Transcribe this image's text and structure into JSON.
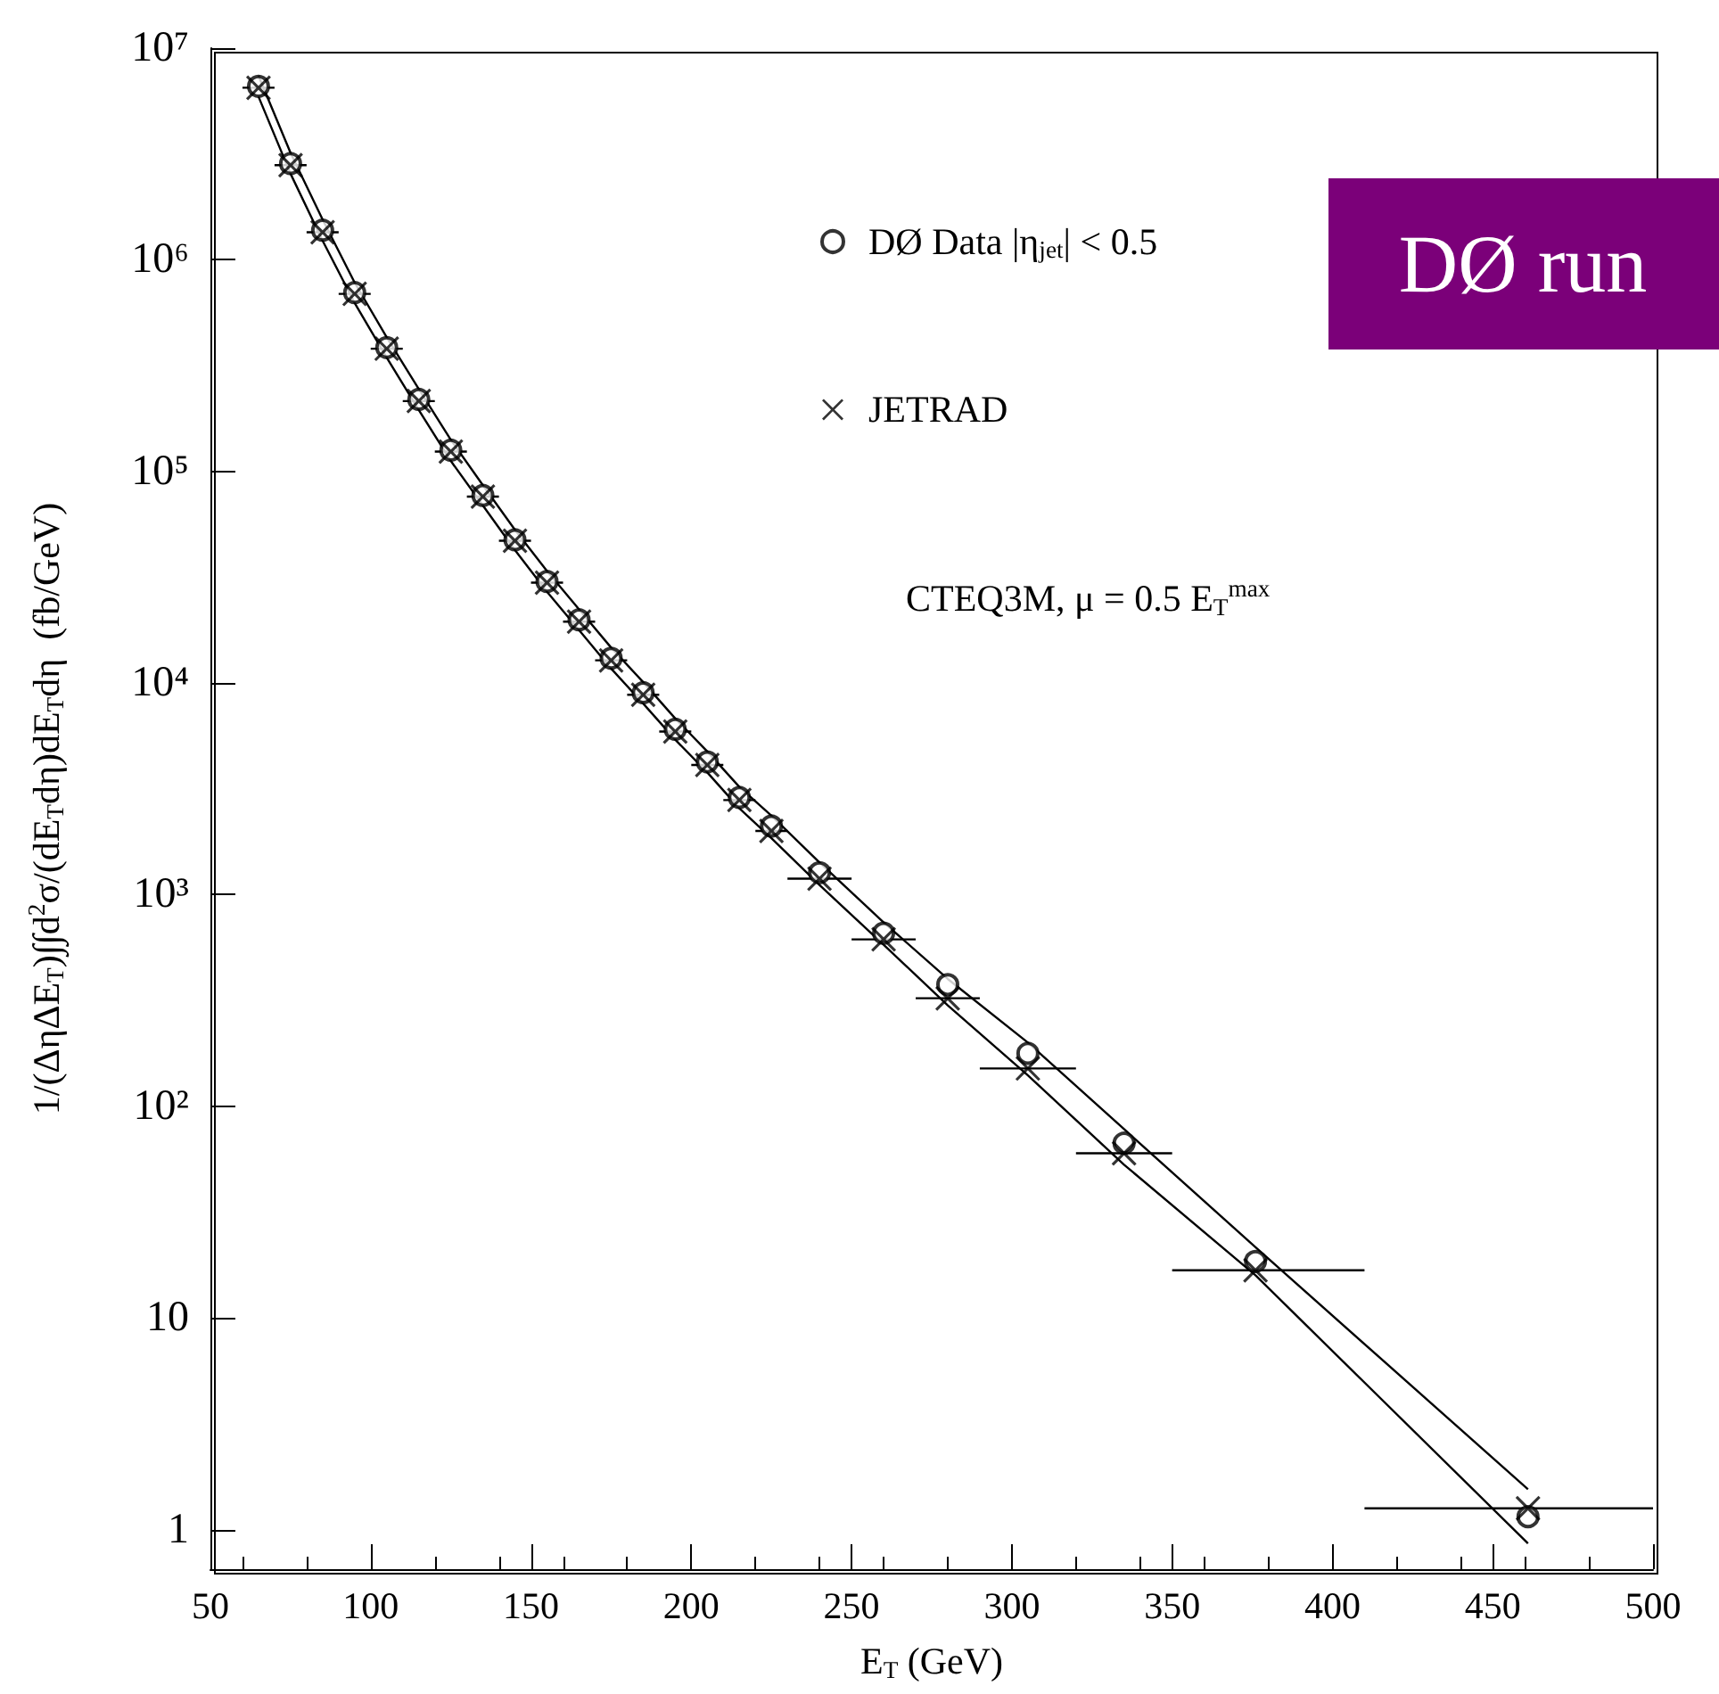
{
  "chart_data": {
    "type": "scatter",
    "xlabel": "E$_{T}$ (GeV)",
    "ylabel": "1/(ΔηΔE$_{T}$)∫∫d$^{2}$σ/(dE$_{T}$dη)dE$_{T}$dη  (fb/GeV)",
    "x": [
      65,
      75,
      85,
      95,
      105,
      115,
      125,
      135,
      145,
      155,
      165,
      175,
      185,
      195,
      205,
      215,
      225,
      240,
      260,
      280,
      305,
      335,
      376,
      461
    ],
    "series": [
      {
        "name": "DØ Data |η$_{jet}$| < 0.5",
        "color": "#000000",
        "marker": "circle",
        "values": [
          6600000,
          2850000,
          1380000,
          700000,
          385000,
          219000,
          126000,
          77000,
          47500,
          30200,
          19900,
          13100,
          9000,
          6050,
          4240,
          2880,
          2110,
          1270,
          658,
          376,
          178,
          67,
          18.5,
          1.15
        ]
      },
      {
        "name": "JETRAD",
        "color": "#000000",
        "marker": "cross",
        "values": [
          6500000,
          2800000,
          1350000,
          690000,
          380000,
          215000,
          124000,
          76000,
          47000,
          29800,
          19500,
          12800,
          8800,
          5900,
          4100,
          2800,
          2000,
          1190,
          615,
          324,
          151,
          60,
          16.8,
          1.26
        ],
        "xerrors": [
          5,
          5,
          5,
          5,
          5,
          5,
          5,
          5,
          5,
          5,
          5,
          5,
          5,
          5,
          5,
          5,
          5,
          [
            230,
            250
          ],
          [
            250,
            270
          ],
          [
            270,
            290
          ],
          [
            290,
            320
          ],
          [
            320,
            350
          ],
          [
            350,
            410
          ],
          [
            410,
            500
          ]
        ]
      },
      {
        "type": "line",
        "color": "#000000",
        "marker": "none",
        "values": [
          7400000,
          3200000,
          1550000,
          780000,
          430000,
          245000,
          141000,
          86000,
          53000,
          33800,
          22300,
          14700,
          10100,
          6800,
          4750,
          3230,
          2360,
          1420,
          740,
          400,
          200,
          78,
          21.6,
          1.55
        ]
      },
      {
        "type": "line",
        "color": "#000000",
        "marker": "none",
        "values": [
          5900000,
          2550000,
          1230000,
          625000,
          345000,
          195000,
          112000,
          69000,
          42500,
          27000,
          17800,
          11700,
          8000,
          5400,
          3780,
          2560,
          1850,
          1110,
          580,
          300,
          140,
          53,
          15.9,
          0.86
        ]
      }
    ],
    "log": "y",
    "xlim": [
      50,
      500
    ],
    "xticks": [
      50,
      100,
      150,
      200,
      250,
      300,
      350,
      400,
      450,
      500
    ],
    "ylim": [
      0.65,
      10000000
    ],
    "yticks": [
      1,
      10,
      {
        "value": 100,
        "label": "10²"
      },
      {
        "value": 1000,
        "label": "10³"
      },
      {
        "value": 10000,
        "label": "10⁴"
      },
      {
        "value": 100000,
        "label": "10⁵"
      },
      {
        "value": 1000000,
        "label": "10⁶"
      },
      {
        "value": 10000000,
        "label": "10⁷"
      }
    ],
    "grid": false,
    "legend": "top right",
    "annotations": [
      "CTEQ3M, μ = 0.5 E$_{T}$$^{max}$",
      "DØ run"
    ]
  }
}
